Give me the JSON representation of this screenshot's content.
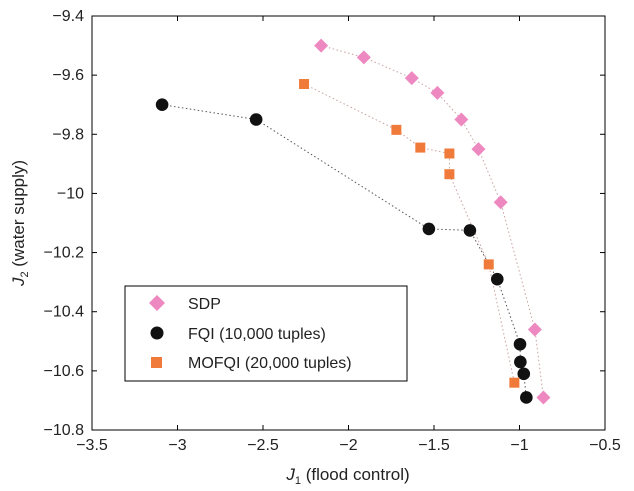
{
  "chart_data": {
    "type": "scatter",
    "xlabel_main": "J",
    "xlabel_sub": "1",
    "xlabel_rest": " (flood control)",
    "ylabel_main": "J",
    "ylabel_sub": "2",
    "ylabel_rest": " (water supply)",
    "xlim": [
      -3.5,
      -0.5
    ],
    "ylim": [
      -10.8,
      -9.4
    ],
    "xticks": [
      -3.5,
      -3,
      -2.5,
      -2,
      -1.5,
      -1,
      -0.5
    ],
    "xtick_labels": [
      "−3.5",
      "−3",
      "−2.5",
      "−2",
      "−1.5",
      "−1",
      "−0.5"
    ],
    "yticks": [
      -9.4,
      -9.6,
      -9.8,
      -10,
      -10.2,
      -10.4,
      -10.6,
      -10.8
    ],
    "ytick_labels": [
      "−9.4",
      "−9.6",
      "−9.8",
      "−10",
      "−10.2",
      "−10.4",
      "−10.6",
      "−10.8"
    ],
    "grid": false,
    "legend_position": "lower-left",
    "series": [
      {
        "name": "SDP",
        "marker": "diamond",
        "color": "#ee88c0",
        "x": [
          -2.16,
          -1.91,
          -1.63,
          -1.48,
          -1.34,
          -1.24,
          -1.11,
          -0.91,
          -0.86
        ],
        "y": [
          -9.5,
          -9.54,
          -9.61,
          -9.66,
          -9.75,
          -9.85,
          -10.03,
          -10.46,
          -10.69
        ]
      },
      {
        "name": "FQI (10,000 tuples)",
        "marker": "circle",
        "color": "#111111",
        "x": [
          -3.09,
          -2.54,
          -1.53,
          -1.29,
          -1.13,
          -0.997,
          -0.995,
          -0.975,
          -0.96
        ],
        "y": [
          -9.7,
          -9.75,
          -10.12,
          -10.125,
          -10.29,
          -10.51,
          -10.57,
          -10.61,
          -10.69
        ]
      },
      {
        "name": "MOFQI (20,000 tuples)",
        "marker": "square",
        "color": "#f07a3a",
        "x": [
          -2.26,
          -1.72,
          -1.58,
          -1.41,
          -1.41,
          -1.18,
          -1.03
        ],
        "y": [
          -9.63,
          -9.785,
          -9.845,
          -9.865,
          -9.935,
          -10.24,
          -10.64
        ]
      }
    ]
  }
}
